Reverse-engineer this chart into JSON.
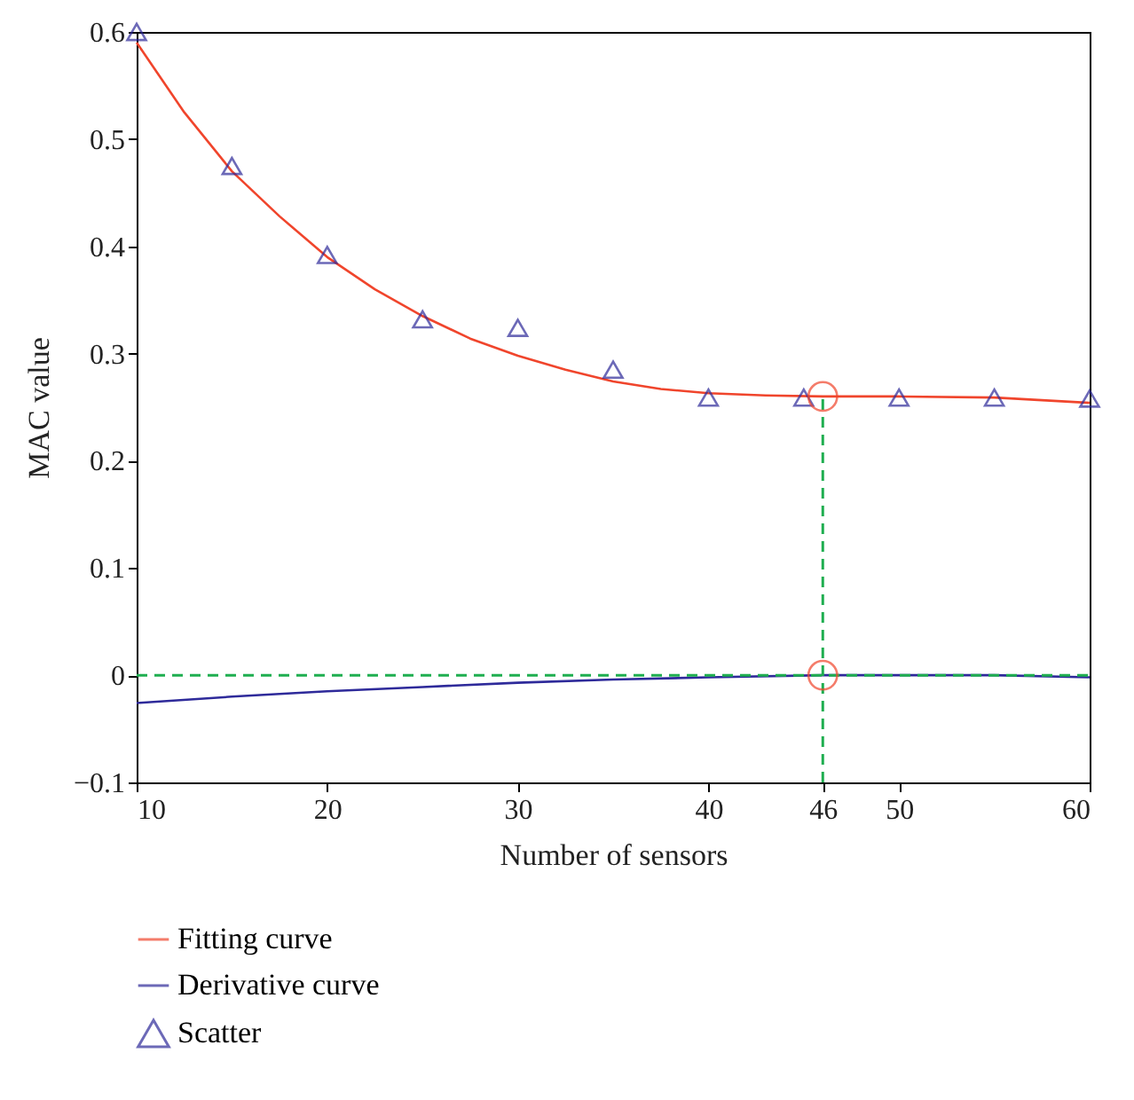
{
  "chart_data": {
    "type": "line",
    "xlabel": "Number of sensors",
    "ylabel": "MAC value",
    "xlim": [
      10,
      60
    ],
    "ylim": [
      -0.1,
      0.6
    ],
    "xticks": [
      10,
      20,
      30,
      40,
      46,
      50,
      60
    ],
    "yticks": [
      -0.1,
      0,
      0.1,
      0.2,
      0.3,
      0.4,
      0.5,
      0.6
    ],
    "grid": false,
    "legend": "bottom",
    "series": [
      {
        "name": "Fitting curve",
        "type": "line",
        "color": "#f0452c",
        "marker": "none",
        "x": [
          10,
          12.5,
          15,
          17.5,
          20,
          22.5,
          25,
          27.5,
          30,
          32.5,
          35,
          37.5,
          40,
          43,
          46,
          50,
          55,
          60
        ],
        "values": [
          0.59,
          0.525,
          0.47,
          0.428,
          0.39,
          0.36,
          0.335,
          0.314,
          0.298,
          0.285,
          0.274,
          0.267,
          0.263,
          0.261,
          0.26,
          0.26,
          0.259,
          0.254
        ]
      },
      {
        "name": "Derivative curve",
        "type": "line",
        "color": "#2e2a9a",
        "marker": "none",
        "x": [
          10,
          15,
          20,
          25,
          30,
          35,
          40,
          46,
          50,
          55,
          60
        ],
        "values": [
          -0.026,
          -0.02,
          -0.015,
          -0.011,
          -0.007,
          -0.004,
          -0.002,
          0,
          0,
          0,
          -0.002
        ]
      },
      {
        "name": "Scatter",
        "type": "scatter",
        "color": "#2e2a9a",
        "marker": "triangle",
        "x": [
          10,
          15,
          20,
          25,
          30,
          35,
          40,
          45,
          50,
          55,
          60
        ],
        "values": [
          0.6,
          0.475,
          0.392,
          0.332,
          0.324,
          0.285,
          0.259,
          0.259,
          0.259,
          0.259,
          0.258
        ]
      },
      {
        "type": "scatter",
        "color": "#f0452c",
        "marker": "circle",
        "x": [
          46,
          46
        ],
        "values": [
          0.26,
          0
        ]
      }
    ],
    "ref_lines": [
      {
        "axis": "y",
        "value": 0,
        "color": "#1fae50",
        "line_style": "dashed"
      },
      {
        "axis": "x",
        "value": 46,
        "color": "#1fae50",
        "line_style": "dashed"
      }
    ]
  }
}
